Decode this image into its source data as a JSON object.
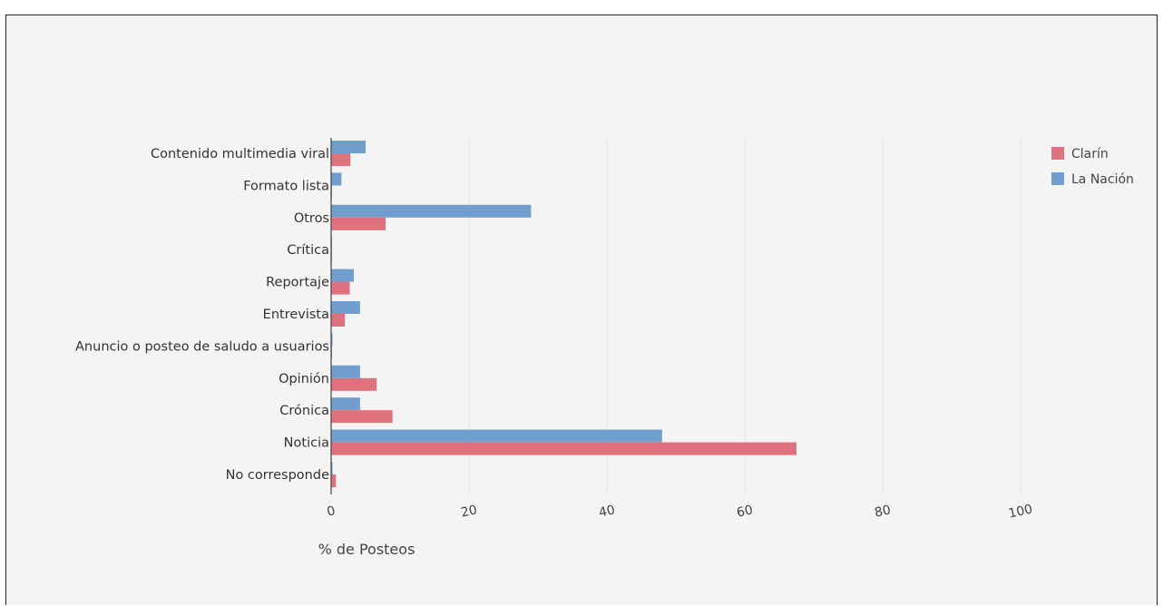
{
  "caption": "",
  "colors": {
    "background": "#f4f4f4",
    "grid": "#e2e2e2",
    "axis": "#444444"
  },
  "chart_data": {
    "type": "bar",
    "orientation": "horizontal",
    "categories": [
      "Contenido multimedia viral",
      "Formato lista",
      "Otros",
      "Crítica",
      "Reportaje",
      "Entrevista",
      "Anuncio o posteo de saludo a usuarios",
      "Opinión",
      "Crónica",
      "Noticia",
      "No corresponde"
    ],
    "series": [
      {
        "name": "Clarín",
        "color": "#e0727f",
        "values": [
          2.8,
          0.1,
          7.9,
          0.1,
          2.7,
          2.0,
          0.1,
          6.6,
          8.9,
          67.5,
          0.7
        ]
      },
      {
        "name": "La Nación",
        "color": "#6f9ecf",
        "values": [
          5.0,
          1.5,
          29.0,
          0.1,
          3.3,
          4.2,
          0.2,
          4.2,
          4.2,
          48.0,
          0.2
        ]
      }
    ],
    "xlabel": "% de Posteos",
    "ylabel": "",
    "xlim": [
      0,
      100
    ],
    "xticks": [
      "0",
      "20",
      "40",
      "60",
      "80",
      "100"
    ],
    "grid": true,
    "legend_position": "top-right"
  }
}
